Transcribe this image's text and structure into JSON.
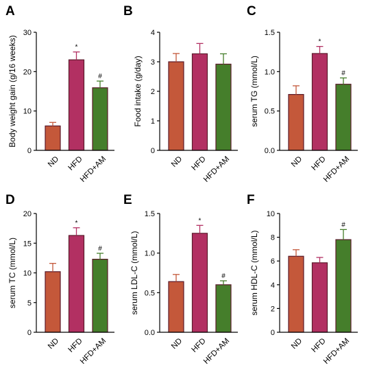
{
  "colors": {
    "ND": "#c4583a",
    "HFD": "#b23062",
    "HFD+AM": "#457e2b",
    "edge": "#5a1a2a"
  },
  "chart_data": [
    {
      "type": "bar",
      "panel": "A",
      "categories": [
        "ND",
        "HFD",
        "HFD+AM"
      ],
      "values": [
        6.2,
        23.0,
        15.9
      ],
      "errors": [
        0.9,
        2.0,
        1.7
      ],
      "sig": [
        "",
        "*",
        "#"
      ],
      "ylabel": "Body weight gain (g/16 weeks)",
      "ylim": [
        0,
        30
      ],
      "yticks": [
        "0",
        "10",
        "20",
        "30"
      ]
    },
    {
      "type": "bar",
      "panel": "B",
      "categories": [
        "ND",
        "HFD",
        "HFD+AM"
      ],
      "values": [
        3.0,
        3.27,
        2.92
      ],
      "errors": [
        0.28,
        0.35,
        0.35
      ],
      "sig": [
        "",
        "",
        ""
      ],
      "ylabel": "Food intake (g/day)",
      "ylim": [
        0,
        4
      ],
      "yticks": [
        "0",
        "1",
        "2",
        "3",
        "4"
      ]
    },
    {
      "type": "bar",
      "panel": "C",
      "categories": [
        "ND",
        "HFD",
        "HFD+AM"
      ],
      "values": [
        0.71,
        1.23,
        0.84
      ],
      "errors": [
        0.11,
        0.09,
        0.08
      ],
      "sig": [
        "",
        "*",
        "#"
      ],
      "ylabel": "serum TG (mmol/L)",
      "ylim": [
        0,
        1.5
      ],
      "yticks": [
        "0.0",
        "0.5",
        "1.0",
        "1.5"
      ]
    },
    {
      "type": "bar",
      "panel": "D",
      "categories": [
        "ND",
        "HFD",
        "HFD+AM"
      ],
      "values": [
        10.2,
        16.3,
        12.3
      ],
      "errors": [
        1.4,
        1.3,
        1.0
      ],
      "sig": [
        "",
        "*",
        "#"
      ],
      "ylabel": "serum TC (mmol/L)",
      "ylim": [
        0,
        20
      ],
      "yticks": [
        "0",
        "5",
        "10",
        "15",
        "20"
      ]
    },
    {
      "type": "bar",
      "panel": "E",
      "categories": [
        "ND",
        "HFD",
        "HFD+AM"
      ],
      "values": [
        0.64,
        1.25,
        0.6
      ],
      "errors": [
        0.09,
        0.1,
        0.05
      ],
      "sig": [
        "",
        "*",
        "#"
      ],
      "ylabel": "serum LDL-C (mmol/L)",
      "ylim": [
        0,
        1.5
      ],
      "yticks": [
        "0.0",
        "0.5",
        "1.0",
        "1.5"
      ]
    },
    {
      "type": "bar",
      "panel": "F",
      "categories": [
        "ND",
        "HFD",
        "HFD+AM"
      ],
      "values": [
        6.4,
        5.85,
        7.8
      ],
      "errors": [
        0.55,
        0.45,
        0.85
      ],
      "sig": [
        "",
        "",
        "#"
      ],
      "ylabel": "serum HDL-C (mmol/L)",
      "ylim": [
        0,
        10
      ],
      "yticks": [
        "0",
        "2",
        "4",
        "6",
        "8",
        "10"
      ]
    }
  ]
}
